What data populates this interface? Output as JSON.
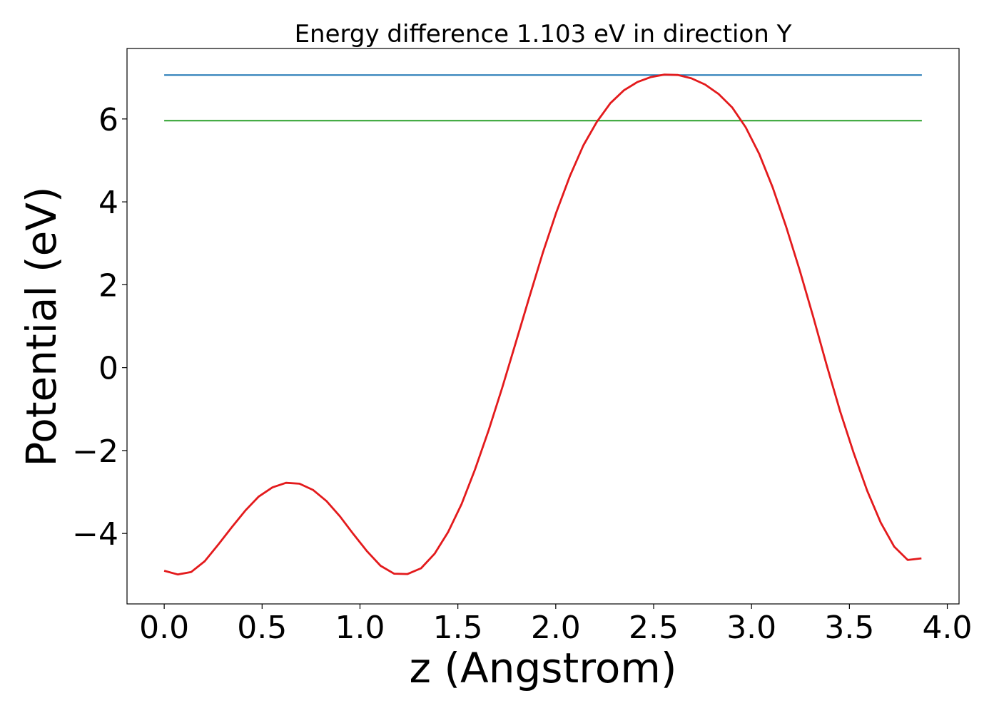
{
  "chart_data": {
    "type": "line",
    "title": "Energy difference 1.103 eV in direction Y",
    "xlabel": "z (Angstrom)",
    "ylabel": "Potential (eV)",
    "xlim": [
      -0.19,
      4.06
    ],
    "ylim": [
      -5.7,
      7.7
    ],
    "xticks": [
      0.0,
      0.5,
      1.0,
      1.5,
      2.0,
      2.5,
      3.0,
      3.5,
      4.0
    ],
    "xtick_labels": [
      "0.0",
      "0.5",
      "1.0",
      "1.5",
      "2.0",
      "2.5",
      "3.0",
      "3.5",
      "4.0"
    ],
    "yticks": [
      -4,
      -2,
      0,
      2,
      4,
      6
    ],
    "ytick_labels": [
      "−4",
      "−2",
      "0",
      "2",
      "4",
      "6"
    ],
    "grid": false,
    "series": [
      {
        "color": "#1f77b4",
        "x": [
          0.0,
          3.87
        ],
        "y": [
          7.06,
          7.06
        ]
      },
      {
        "color": "#2ca02c",
        "x": [
          0.0,
          3.87
        ],
        "y": [
          5.96,
          5.96
        ]
      },
      {
        "color": "#e31a1c",
        "x": [
          0.0,
          0.069,
          0.138,
          0.207,
          0.276,
          0.345,
          0.414,
          0.483,
          0.553,
          0.622,
          0.691,
          0.76,
          0.829,
          0.898,
          0.967,
          1.036,
          1.105,
          1.174,
          1.243,
          1.312,
          1.381,
          1.45,
          1.519,
          1.588,
          1.658,
          1.727,
          1.796,
          1.865,
          1.934,
          2.003,
          2.072,
          2.141,
          2.21,
          2.279,
          2.348,
          2.417,
          2.486,
          2.555,
          2.624,
          2.693,
          2.763,
          2.832,
          2.901,
          2.97,
          3.039,
          3.108,
          3.177,
          3.246,
          3.315,
          3.384,
          3.453,
          3.522,
          3.591,
          3.66,
          3.729,
          3.798,
          3.868
        ],
        "y": [
          -4.9,
          -4.99,
          -4.93,
          -4.67,
          -4.27,
          -3.85,
          -3.45,
          -3.11,
          -2.89,
          -2.78,
          -2.8,
          -2.95,
          -3.22,
          -3.59,
          -4.02,
          -4.43,
          -4.78,
          -4.97,
          -4.98,
          -4.84,
          -4.49,
          -3.97,
          -3.29,
          -2.45,
          -1.5,
          -0.48,
          0.61,
          1.7,
          2.77,
          3.75,
          4.62,
          5.36,
          5.93,
          6.38,
          6.69,
          6.89,
          7.01,
          7.07,
          7.06,
          6.98,
          6.83,
          6.6,
          6.28,
          5.8,
          5.16,
          4.35,
          3.4,
          2.35,
          1.23,
          0.06,
          -1.06,
          -2.06,
          -2.97,
          -3.74,
          -4.32,
          -4.64,
          -4.6
        ]
      }
    ]
  }
}
